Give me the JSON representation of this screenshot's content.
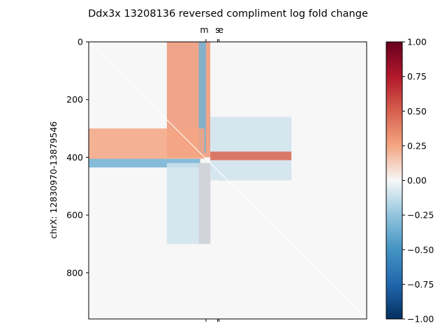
{
  "chart_data": {
    "type": "heatmap",
    "title": "Ddx3x 13208136 reversed compliment log fold change",
    "xlabel": "",
    "ylabel": "chrX: 12830970-13879546",
    "matrix_size": 960,
    "xlim": [
      0,
      960
    ],
    "ylim": [
      960,
      0
    ],
    "y_ticks": [
      0,
      200,
      400,
      600,
      800
    ],
    "top_ticks": [
      {
        "label": "m",
        "value": 405
      },
      {
        "label": "s",
        "value": 445
      },
      {
        "label": "e",
        "value": 450
      }
    ],
    "colorbar": {
      "colormap": "RdBu_r",
      "vmin": -1.0,
      "vmax": 1.0,
      "ticks": [
        "1.00",
        "0.75",
        "0.50",
        "0.25",
        "0.00",
        "−0.25",
        "−0.50",
        "−0.75",
        "−1.00"
      ],
      "tick_values": [
        1.0,
        0.75,
        0.5,
        0.25,
        0.0,
        -0.25,
        -0.5,
        -0.75,
        -1.0
      ]
    },
    "background_value": 0.0,
    "center": 405,
    "regions": [
      {
        "name": "upper-vertical-stripe",
        "x": [
          270,
          420
        ],
        "y": [
          0,
          400
        ],
        "value": 0.3
      },
      {
        "name": "upper-vertical-core",
        "x": [
          380,
          405
        ],
        "y": [
          0,
          385
        ],
        "value": -0.35
      },
      {
        "name": "left-horizontal-stripe",
        "x": [
          0,
          400
        ],
        "y": [
          300,
          405
        ],
        "value": 0.25
      },
      {
        "name": "left-horizontal-core",
        "x": [
          0,
          385
        ],
        "y": [
          405,
          435
        ],
        "value": -0.35
      },
      {
        "name": "lower-vertical-stripe",
        "x": [
          380,
          420
        ],
        "y": [
          420,
          700
        ],
        "value": 0.45
      },
      {
        "name": "lower-vertical-band",
        "x": [
          270,
          420
        ],
        "y": [
          420,
          700
        ],
        "value": -0.1
      },
      {
        "name": "right-horizontal-stripe",
        "x": [
          420,
          700
        ],
        "y": [
          380,
          410
        ],
        "value": 0.5
      },
      {
        "name": "right-horizontal-band",
        "x": [
          420,
          700
        ],
        "y": [
          410,
          480
        ],
        "value": -0.1
      },
      {
        "name": "upper-right-block",
        "x": [
          420,
          700
        ],
        "y": [
          260,
          380
        ],
        "value": -0.1
      }
    ]
  }
}
